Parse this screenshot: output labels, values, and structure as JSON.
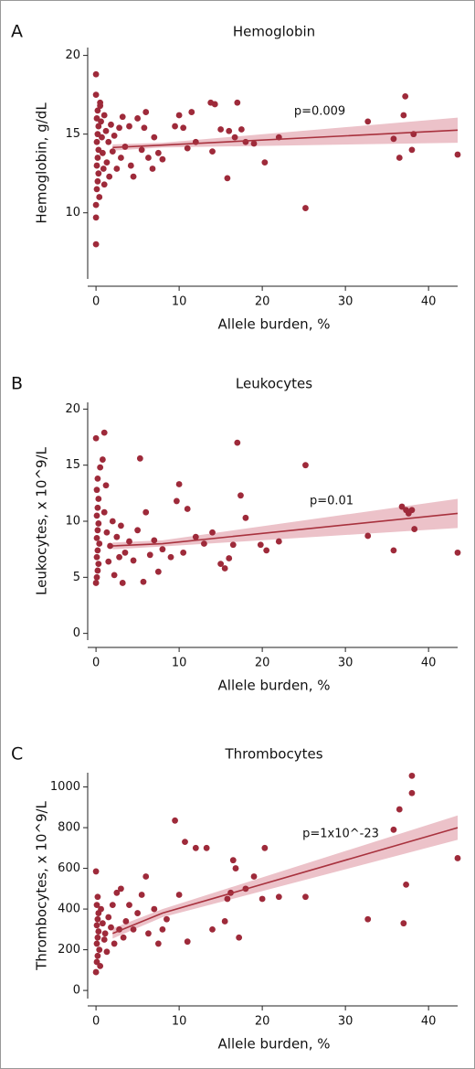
{
  "chart_data": [
    {
      "type": "scatter",
      "panel": "A",
      "title": "Hemoglobin",
      "xlabel": "Allele burden, %",
      "ylabel": "Hemoglobin, g/dL",
      "annotation": "p=0.009",
      "color": "#9e2a3a",
      "fit_color": "#a8323e",
      "band_color": "#e9b7bf",
      "xlim": [
        -1,
        43.5
      ],
      "ylim": [
        5.8,
        20.5
      ],
      "xticks": [
        0,
        10,
        20,
        30,
        40
      ],
      "yticks": [
        10,
        15,
        20
      ],
      "x": [
        0,
        0,
        0,
        0,
        0,
        0.2,
        0.1,
        0.3,
        0.2,
        0.1,
        0.3,
        0.2,
        0.1,
        0.3,
        0.2,
        0.1,
        0.4,
        0.5,
        0.5,
        0.6,
        0.7,
        0.8,
        0.9,
        1,
        1,
        1.2,
        1.3,
        1.5,
        1.6,
        1.8,
        2,
        2.2,
        2.5,
        2.8,
        3,
        3.2,
        3.5,
        4,
        4.2,
        4.5,
        5,
        5.5,
        5.8,
        6,
        6.3,
        6.8,
        7,
        7.5,
        8,
        9.5,
        10,
        10.5,
        11,
        11.5,
        12,
        13.8,
        14,
        14.3,
        15,
        15.8,
        16,
        16.7,
        17,
        17.5,
        18,
        19,
        20.3,
        22,
        25.2,
        32.7,
        35.8,
        36.5,
        37,
        37.2,
        38,
        38.2,
        43.5
      ],
      "y": [
        18.8,
        8,
        17.5,
        10.5,
        9.7,
        16.5,
        16,
        15.5,
        15,
        14.5,
        14,
        13.5,
        13,
        12.5,
        12,
        11.5,
        11,
        17,
        16.8,
        15.8,
        14.8,
        13.8,
        12.8,
        16.2,
        11.8,
        15.2,
        13.2,
        14.5,
        12.3,
        15.6,
        13.9,
        14.9,
        12.8,
        15.4,
        13.5,
        16.1,
        14.2,
        15.5,
        13,
        12.3,
        16,
        14,
        15.4,
        16.4,
        13.5,
        12.8,
        14.8,
        13.8,
        13.4,
        15.5,
        16.2,
        15.4,
        14.1,
        16.4,
        14.5,
        17,
        13.9,
        16.9,
        15.3,
        12.2,
        15.2,
        14.8,
        17,
        15.3,
        14.5,
        14.4,
        13.2,
        14.8,
        10.3,
        15.8,
        14.7,
        13.5,
        16.2,
        17.4,
        14,
        15,
        13.7
      ],
      "fit": {
        "x": [
          2,
          8,
          43.5
        ],
        "y": [
          14.15,
          14.3,
          15.25
        ],
        "lower": [
          13.95,
          14.15,
          14.45
        ],
        "upper": [
          14.35,
          14.45,
          16.05
        ]
      }
    },
    {
      "type": "scatter",
      "panel": "B",
      "title": "Leukocytes",
      "xlabel": "Allele burden, %",
      "ylabel": "Leukocytes, x 10^9/L",
      "annotation": "p=0.01",
      "color": "#9e2a3a",
      "fit_color": "#a8323e",
      "band_color": "#e9b7bf",
      "xlim": [
        -1,
        43.5
      ],
      "ylim": [
        -0.6,
        20.6
      ],
      "xticks": [
        0,
        10,
        20,
        30,
        40
      ],
      "yticks": [
        0,
        5,
        10,
        15,
        20
      ],
      "x": [
        0,
        0,
        0.2,
        0.1,
        0.3,
        0.2,
        0.1,
        0.3,
        0.2,
        0.1,
        0.4,
        0.2,
        0.1,
        0.3,
        0.2,
        0.1,
        0.5,
        0.8,
        1,
        1,
        1.2,
        1.3,
        1.5,
        1.7,
        2,
        2.2,
        2.5,
        2.8,
        3,
        3.2,
        3.5,
        4,
        4.5,
        5,
        5.3,
        5.7,
        6,
        6.5,
        7,
        7.5,
        8,
        9,
        9.7,
        10,
        10.5,
        11,
        12,
        13,
        14,
        15,
        15.5,
        16,
        16.5,
        17,
        17.4,
        18,
        19.8,
        20.5,
        22,
        25.2,
        32.7,
        35.8,
        36.8,
        37.3,
        37.6,
        38,
        38.3,
        43.5
      ],
      "y": [
        17.4,
        4.5,
        13.8,
        12.8,
        12,
        11.2,
        10.5,
        9.8,
        9.2,
        8.5,
        8,
        7.4,
        6.8,
        6.2,
        5.6,
        5,
        14.8,
        15.5,
        17.9,
        10.8,
        13.2,
        9,
        6.4,
        7.8,
        10,
        5.2,
        8.6,
        6.8,
        9.6,
        4.5,
        7.2,
        8.2,
        6.5,
        9.2,
        15.6,
        4.6,
        10.8,
        7,
        8.3,
        5.5,
        7.5,
        6.8,
        11.8,
        13.3,
        7.2,
        11.1,
        8.6,
        8,
        9,
        6.2,
        5.8,
        6.7,
        7.9,
        17,
        12.3,
        10.3,
        7.9,
        7.4,
        8.2,
        15,
        8.7,
        7.4,
        11.3,
        11,
        10.7,
        11,
        9.3,
        7.2
      ],
      "fit": {
        "x": [
          2,
          8,
          43.5
        ],
        "y": [
          7.8,
          8.0,
          10.7
        ],
        "lower": [
          7.5,
          7.75,
          9.4
        ],
        "upper": [
          8.1,
          8.3,
          12.0
        ]
      }
    },
    {
      "type": "scatter",
      "panel": "C",
      "title": "Thrombocytes",
      "xlabel": "Allele burden, %",
      "ylabel": "Thrombocytes, x 10^9/L",
      "annotation": "p=1x10^-23",
      "color": "#9e2a3a",
      "fit_color": "#a8323e",
      "band_color": "#e9b7bf",
      "xlim": [
        -1,
        43.5
      ],
      "ylim": [
        -40,
        1070
      ],
      "xticks": [
        0,
        10,
        20,
        30,
        40
      ],
      "yticks": [
        0,
        200,
        400,
        600,
        800,
        1000
      ],
      "x": [
        0,
        0,
        0.2,
        0.1,
        0.3,
        0.2,
        0.1,
        0.3,
        0.2,
        0.1,
        0.4,
        0.2,
        0.1,
        0.5,
        0.6,
        0.8,
        1,
        1.1,
        1.3,
        1.5,
        1.8,
        2,
        2.2,
        2.5,
        2.8,
        3,
        3.3,
        3.6,
        4,
        4.5,
        5,
        5.5,
        6,
        6.3,
        7,
        7.5,
        8,
        8.5,
        9.5,
        10,
        10.7,
        11,
        12,
        13.3,
        14,
        15.5,
        15.8,
        16.2,
        16.5,
        16.8,
        17.2,
        18,
        19,
        20,
        20.3,
        22,
        25.2,
        32.7,
        35.8,
        36.5,
        37,
        37.3,
        38,
        38,
        43.5
      ],
      "y": [
        585,
        90,
        460,
        420,
        380,
        350,
        320,
        290,
        260,
        230,
        200,
        170,
        140,
        120,
        400,
        330,
        250,
        280,
        190,
        360,
        310,
        420,
        230,
        480,
        300,
        500,
        260,
        340,
        420,
        300,
        380,
        470,
        560,
        280,
        400,
        230,
        300,
        350,
        835,
        470,
        730,
        240,
        700,
        700,
        300,
        340,
        450,
        480,
        640,
        600,
        260,
        500,
        560,
        450,
        700,
        460,
        460,
        350,
        790,
        890,
        330,
        520,
        970,
        1055,
        650
      ],
      "fit": {
        "x": [
          2,
          8,
          43.5
        ],
        "y": [
          280,
          380,
          800
        ],
        "lower": [
          255,
          360,
          740
        ],
        "upper": [
          305,
          400,
          860
        ]
      }
    }
  ]
}
